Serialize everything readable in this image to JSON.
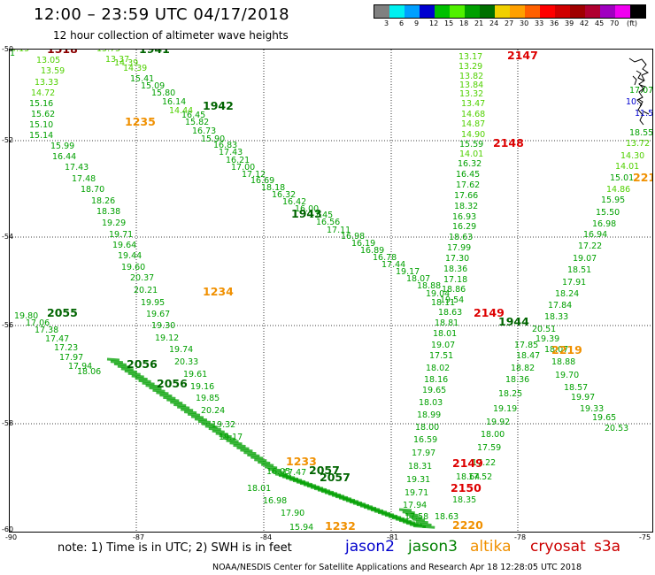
{
  "header": {
    "title": "12:00 – 23:59 UTC 04/17/2018",
    "subtitle": "12 hour collection of altimeter wave heights"
  },
  "scale": {
    "colors": [
      "#808080",
      "#00f0f0",
      "#00a0ff",
      "#0000d0",
      "#00c000",
      "#50f000",
      "#00a000",
      "#007000",
      "#f0d000",
      "#ffa000",
      "#ff6000",
      "#ff0000",
      "#d00000",
      "#a00000",
      "#b00030",
      "#a000c0",
      "#f000f0",
      "#000000"
    ],
    "labels": [
      "3",
      "6",
      "9",
      "12",
      "15",
      "18",
      "21",
      "24",
      "27",
      "30",
      "33",
      "36",
      "39",
      "42",
      "45",
      "70",
      "(ft)"
    ]
  },
  "axes": {
    "lat_labels": [
      "-50",
      "-52",
      "-54",
      "-56",
      "-58",
      "-60"
    ],
    "lon_labels": [
      "-90",
      "-87",
      "-84",
      "-81",
      "-78",
      "-75"
    ]
  },
  "labels": [
    {
      "t": "14.15",
      "c": "#50d000"
    },
    {
      "t": "13.05",
      "c": "#50d000"
    },
    {
      "t": "13.59",
      "c": "#50d000"
    },
    {
      "t": "13.33",
      "c": "#50d000"
    },
    {
      "t": "14.72",
      "c": "#50d000"
    },
    {
      "t": "15.16",
      "c": "#00a000"
    },
    {
      "t": "15.62",
      "c": "#00a000"
    },
    {
      "t": "15.10",
      "c": "#00a000"
    },
    {
      "t": "15.14",
      "c": "#00a000"
    },
    {
      "t": "15.99",
      "c": "#00a000"
    },
    {
      "t": "16.44",
      "c": "#00a000"
    },
    {
      "t": "17.43",
      "c": "#00a000"
    },
    {
      "t": "17.48",
      "c": "#00a000"
    },
    {
      "t": "18.70",
      "c": "#00a000"
    },
    {
      "t": "18.26",
      "c": "#00a000"
    },
    {
      "t": "18.38",
      "c": "#00a000"
    },
    {
      "t": "19.29",
      "c": "#00a000"
    },
    {
      "t": "19.71",
      "c": "#00a000"
    },
    {
      "t": "19.64",
      "c": "#00a000"
    },
    {
      "t": "19.44",
      "c": "#00a000"
    },
    {
      "t": "19.60",
      "c": "#00a000"
    },
    {
      "t": "20.37",
      "c": "#00a000"
    },
    {
      "t": "20.21",
      "c": "#00a000"
    },
    {
      "t": "19.95",
      "c": "#00a000"
    },
    {
      "t": "19.67",
      "c": "#00a000"
    },
    {
      "t": "19.30",
      "c": "#00a000"
    },
    {
      "t": "19.12",
      "c": "#00a000"
    },
    {
      "t": "19.74",
      "c": "#00a000"
    },
    {
      "t": "20.33",
      "c": "#00a000"
    },
    {
      "t": "19.61",
      "c": "#00a000"
    },
    {
      "t": "19.16",
      "c": "#00a000"
    },
    {
      "t": "19.85",
      "c": "#00a000"
    },
    {
      "t": "20.24",
      "c": "#00a000"
    },
    {
      "t": "19.32",
      "c": "#00a000"
    },
    {
      "t": "19.17",
      "c": "#00a000"
    },
    {
      "t": "15.75",
      "c": "#50d000"
    },
    {
      "t": "13.37",
      "c": "#50d000"
    },
    {
      "t": "14.39",
      "c": "#50d000"
    },
    {
      "t": "14.39",
      "c": "#50d000"
    },
    {
      "t": "15.41",
      "c": "#00a000"
    },
    {
      "t": "15.09",
      "c": "#00a000"
    },
    {
      "t": "15.80",
      "c": "#00a000"
    },
    {
      "t": "16.14",
      "c": "#00a000"
    },
    {
      "t": "14.44",
      "c": "#50d000"
    },
    {
      "t": "16.45",
      "c": "#00a000"
    },
    {
      "t": "15.82",
      "c": "#00a000"
    },
    {
      "t": "16.73",
      "c": "#00a000"
    },
    {
      "t": "15.90",
      "c": "#00a000"
    },
    {
      "t": "16.83",
      "c": "#00a000"
    },
    {
      "t": "17.43",
      "c": "#00a000"
    },
    {
      "t": "16.21",
      "c": "#00a000"
    },
    {
      "t": "17.00",
      "c": "#00a000"
    },
    {
      "t": "17.12",
      "c": "#00a000"
    },
    {
      "t": "16.69",
      "c": "#00a000"
    },
    {
      "t": "18.18",
      "c": "#00a000"
    },
    {
      "t": "16.32",
      "c": "#00a000"
    },
    {
      "t": "16.42",
      "c": "#00a000"
    },
    {
      "t": "16.00",
      "c": "#00a000"
    },
    {
      "t": "17.45",
      "c": "#00a000"
    },
    {
      "t": "16.56",
      "c": "#00a000"
    },
    {
      "t": "17.11",
      "c": "#00a000"
    },
    {
      "t": "16.98",
      "c": "#00a000"
    },
    {
      "t": "16.19",
      "c": "#00a000"
    },
    {
      "t": "16.89",
      "c": "#00a000"
    },
    {
      "t": "16.78",
      "c": "#00a000"
    },
    {
      "t": "17.44",
      "c": "#00a000"
    },
    {
      "t": "19.17",
      "c": "#00a000"
    },
    {
      "t": "18.07",
      "c": "#00a000"
    },
    {
      "t": "18.88",
      "c": "#00a000"
    },
    {
      "t": "19.04",
      "c": "#00a000"
    },
    {
      "t": "18.11",
      "c": "#00a000"
    },
    {
      "t": "13.17",
      "c": "#50d000"
    },
    {
      "t": "13.29",
      "c": "#50d000"
    },
    {
      "t": "13.82",
      "c": "#50d000"
    },
    {
      "t": "13.84",
      "c": "#50d000"
    },
    {
      "t": "13.32",
      "c": "#50d000"
    },
    {
      "t": "13.47",
      "c": "#50d000"
    },
    {
      "t": "14.68",
      "c": "#50d000"
    },
    {
      "t": "14.87",
      "c": "#50d000"
    },
    {
      "t": "14.90",
      "c": "#50d000"
    },
    {
      "t": "15.59",
      "c": "#00a000"
    },
    {
      "t": "14.01",
      "c": "#50d000"
    },
    {
      "t": "16.32",
      "c": "#00a000"
    },
    {
      "t": "16.45",
      "c": "#00a000"
    },
    {
      "t": "17.62",
      "c": "#00a000"
    },
    {
      "t": "17.66",
      "c": "#00a000"
    },
    {
      "t": "18.32",
      "c": "#00a000"
    },
    {
      "t": "16.93",
      "c": "#00a000"
    },
    {
      "t": "16.29",
      "c": "#00a000"
    },
    {
      "t": "18.63",
      "c": "#00a000"
    },
    {
      "t": "17.99",
      "c": "#00a000"
    },
    {
      "t": "17.30",
      "c": "#00a000"
    },
    {
      "t": "18.36",
      "c": "#00a000"
    },
    {
      "t": "17.18",
      "c": "#00a000"
    },
    {
      "t": "18.86",
      "c": "#00a000"
    },
    {
      "t": "19.54",
      "c": "#00a000"
    },
    {
      "t": "18.63",
      "c": "#00a000"
    },
    {
      "t": "18.81",
      "c": "#00a000"
    },
    {
      "t": "18.01",
      "c": "#00a000"
    },
    {
      "t": "19.07",
      "c": "#00a000"
    },
    {
      "t": "17.51",
      "c": "#00a000"
    },
    {
      "t": "18.02",
      "c": "#00a000"
    },
    {
      "t": "18.16",
      "c": "#00a000"
    },
    {
      "t": "19.65",
      "c": "#00a000"
    },
    {
      "t": "18.03",
      "c": "#00a000"
    },
    {
      "t": "18.99",
      "c": "#00a000"
    },
    {
      "t": "18.00",
      "c": "#00a000"
    },
    {
      "t": "16.59",
      "c": "#00a000"
    },
    {
      "t": "17.97",
      "c": "#00a000"
    },
    {
      "t": "18.31",
      "c": "#00a000"
    },
    {
      "t": "19.31",
      "c": "#00a000"
    },
    {
      "t": "19.71",
      "c": "#00a000"
    },
    {
      "t": "17.94",
      "c": "#00a000"
    },
    {
      "t": "17.58",
      "c": "#00a000"
    },
    {
      "t": "18.63",
      "c": "#00a000"
    },
    {
      "t": "18.35",
      "c": "#00a000"
    },
    {
      "t": "18.64",
      "c": "#00a000"
    },
    {
      "t": "17.52",
      "c": "#00a000"
    },
    {
      "t": "17.22",
      "c": "#00a000"
    },
    {
      "t": "17.59",
      "c": "#00a000"
    },
    {
      "t": "18.00",
      "c": "#00a000"
    },
    {
      "t": "19.92",
      "c": "#00a000"
    },
    {
      "t": "19.19",
      "c": "#00a000"
    },
    {
      "t": "18.25",
      "c": "#00a000"
    },
    {
      "t": "18.36",
      "c": "#00a000"
    },
    {
      "t": "18.82",
      "c": "#00a000"
    },
    {
      "t": "18.47",
      "c": "#00a000"
    },
    {
      "t": "17.85",
      "c": "#00a000"
    },
    {
      "t": "18.55",
      "c": "#00a000"
    },
    {
      "t": "13.72",
      "c": "#50d000"
    },
    {
      "t": "14.30",
      "c": "#50d000"
    },
    {
      "t": "14.01",
      "c": "#50d000"
    },
    {
      "t": "15.01",
      "c": "#00a000"
    },
    {
      "t": "14.86",
      "c": "#50d000"
    },
    {
      "t": "15.95",
      "c": "#00a000"
    },
    {
      "t": "15.50",
      "c": "#00a000"
    },
    {
      "t": "16.98",
      "c": "#00a000"
    },
    {
      "t": "16.94",
      "c": "#00a000"
    },
    {
      "t": "17.22",
      "c": "#00a000"
    },
    {
      "t": "19.07",
      "c": "#00a000"
    },
    {
      "t": "18.51",
      "c": "#00a000"
    },
    {
      "t": "17.91",
      "c": "#00a000"
    },
    {
      "t": "18.24",
      "c": "#00a000"
    },
    {
      "t": "17.84",
      "c": "#00a000"
    },
    {
      "t": "18.33",
      "c": "#00a000"
    },
    {
      "t": "20.51",
      "c": "#00a000"
    },
    {
      "t": "19.39",
      "c": "#00a000"
    },
    {
      "t": "18.07",
      "c": "#00a000"
    },
    {
      "t": "18.88",
      "c": "#00a000"
    },
    {
      "t": "19.70",
      "c": "#00a000"
    },
    {
      "t": "18.57",
      "c": "#00a000"
    },
    {
      "t": "19.97",
      "c": "#00a000"
    },
    {
      "t": "19.33",
      "c": "#00a000"
    },
    {
      "t": "19.65",
      "c": "#00a000"
    },
    {
      "t": "20.53",
      "c": "#00a000"
    },
    {
      "t": "19.80",
      "c": "#00a000"
    },
    {
      "t": "17.06",
      "c": "#00a000"
    },
    {
      "t": "17.38",
      "c": "#00a000"
    },
    {
      "t": "17.47",
      "c": "#00a000"
    },
    {
      "t": "17.23",
      "c": "#00a000"
    },
    {
      "t": "17.97",
      "c": "#00a000"
    },
    {
      "t": "17.94",
      "c": "#00a000"
    },
    {
      "t": "18.06",
      "c": "#00a000"
    },
    {
      "t": "18.01",
      "c": "#00a000"
    },
    {
      "t": "16.98",
      "c": "#00a000"
    },
    {
      "t": "17.90",
      "c": "#00a000"
    },
    {
      "t": "15.94",
      "c": "#00a000"
    },
    {
      "t": "16.05",
      "c": "#00a000"
    },
    {
      "t": "17.47",
      "c": "#00a000"
    },
    {
      "t": "17.07",
      "c": "#00a000"
    },
    {
      "t": "10.",
      "c": "#0000d0"
    },
    {
      "t": "11.5",
      "c": "#0000d0"
    },
    {
      "t": "1",
      "c": "#00a000"
    }
  ],
  "passes": [
    {
      "t": "1518",
      "c": "#8b0000"
    },
    {
      "t": "1941",
      "c": "#006400"
    },
    {
      "t": "1942",
      "c": "#006400"
    },
    {
      "t": "1943",
      "c": "#006400"
    },
    {
      "t": "1944",
      "c": "#006400"
    },
    {
      "t": "1235",
      "c": "#f09000"
    },
    {
      "t": "1234",
      "c": "#f09000"
    },
    {
      "t": "1233",
      "c": "#f09000"
    },
    {
      "t": "1232",
      "c": "#f09000"
    },
    {
      "t": "2055",
      "c": "#006400"
    },
    {
      "t": "2056",
      "c": "#006400"
    },
    {
      "t": "2056",
      "c": "#006400"
    },
    {
      "t": "2057",
      "c": "#006400"
    },
    {
      "t": "2057",
      "c": "#006400"
    },
    {
      "t": "2147",
      "c": "#dd0000"
    },
    {
      "t": "2148",
      "c": "#dd0000"
    },
    {
      "t": "2149",
      "c": "#dd0000"
    },
    {
      "t": "2149",
      "c": "#dd0000"
    },
    {
      "t": "2150",
      "c": "#dd0000"
    },
    {
      "t": "2219",
      "c": "#f09000"
    },
    {
      "t": "2220",
      "c": "#f09000"
    },
    {
      "t": "221",
      "c": "#f09000"
    }
  ],
  "footer": {
    "note": "note:  1) Time is in UTC;  2) SWH is in feet",
    "legend": [
      {
        "name": "jason2",
        "color": "#0000cc"
      },
      {
        "name": "jason3",
        "color": "#008000"
      },
      {
        "name": "altika",
        "color": "#f09000"
      },
      {
        "name": "cryosat",
        "color": "#cc0000"
      },
      {
        "name": "s3a",
        "color": "#cc0000"
      }
    ],
    "credit": "NOAA/NESDIS Center for Satellite Applications and Research     Apr 18 12:28:05 UTC 2018"
  }
}
